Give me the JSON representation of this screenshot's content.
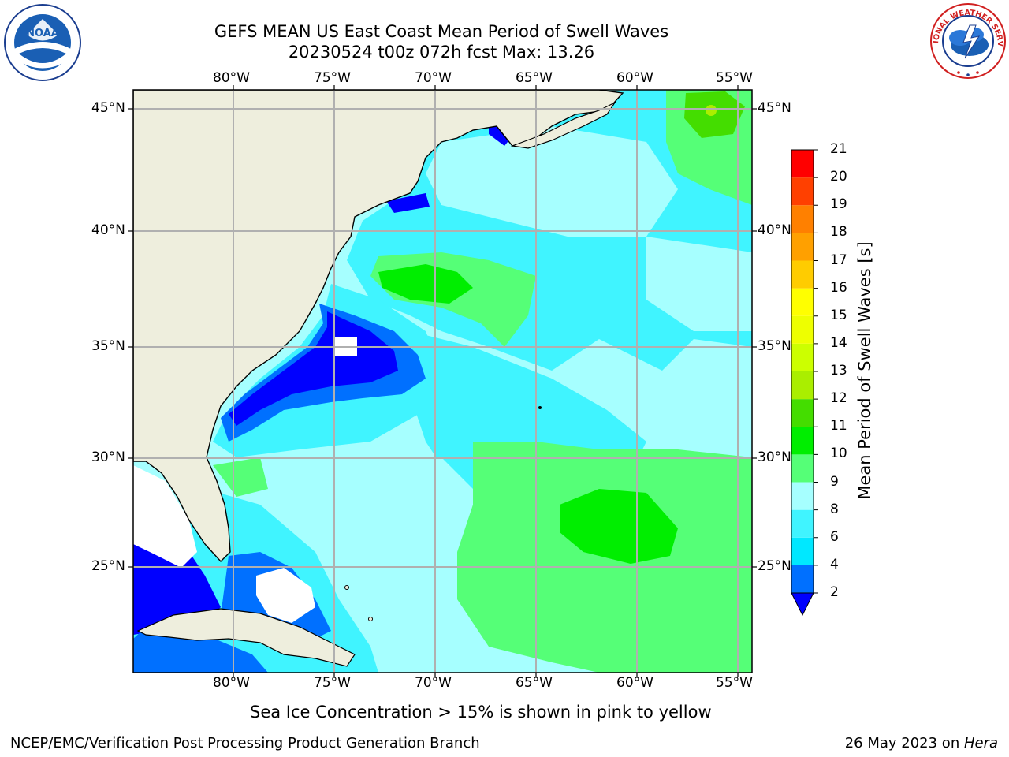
{
  "header": {
    "title_line1": "GEFS MEAN US East Coast Mean Period of Swell Waves",
    "title_line2": "20230524 t00z 072h fcst   Max: 13.26"
  },
  "map": {
    "lon_labels": [
      "80°W",
      "75°W",
      "70°W",
      "65°W",
      "60°W",
      "55°W"
    ],
    "lat_labels": [
      "45°N",
      "40°N",
      "35°N",
      "30°N",
      "25°N"
    ],
    "land_color": "#eeeedd",
    "grid_color": "#b0b0b0"
  },
  "colorbar": {
    "title": "Mean Period of Swell Waves [s]",
    "tick_labels": [
      "2",
      "4",
      "6",
      "8",
      "9",
      "10",
      "11",
      "12",
      "13",
      "14",
      "15",
      "16",
      "17",
      "18",
      "19",
      "20",
      "21"
    ],
    "colors": [
      "#0000ff",
      "#0070ff",
      "#00e8ff",
      "#40f4ff",
      "#a6ffff",
      "#55ff77",
      "#00ee00",
      "#44dd00",
      "#aaee00",
      "#ccff00",
      "#eeff00",
      "#ffff00",
      "#ffcc00",
      "#ffa000",
      "#ff8000",
      "#ff4000",
      "#ff0000"
    ]
  },
  "footer": {
    "note": "Sea Ice Concentration > 15% is shown in pink to yellow",
    "left": "NCEP/EMC/Verification Post Processing Product Generation Branch",
    "right_prefix": "26 May 2023 on ",
    "right_host": "Hera"
  },
  "logos": {
    "left": "noaa-logo",
    "right": "national-weather-service-logo",
    "right_text": "NATIONAL WEATHER SERVICE"
  }
}
